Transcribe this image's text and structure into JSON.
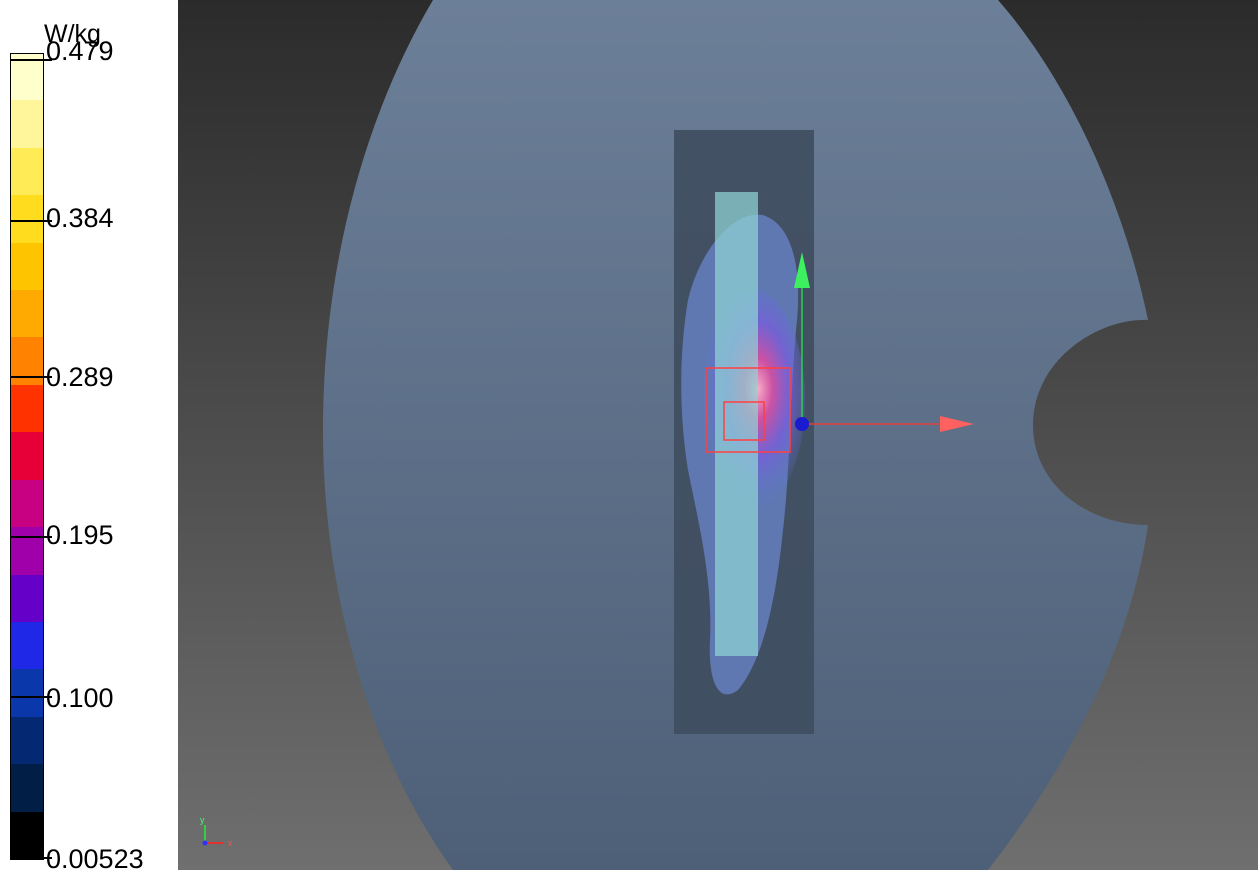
{
  "legend": {
    "unit": "W/kg",
    "tick_labels": [
      "0.479",
      "0.384",
      "0.289",
      "0.195",
      "0.100",
      "0.00523"
    ],
    "colors": [
      "#FFFFCC",
      "#FFF59A",
      "#FFEB55",
      "#FFDC1E",
      "#FFC400",
      "#FFAA00",
      "#FF8200",
      "#FF3200",
      "#E60037",
      "#C80082",
      "#A000AA",
      "#6400C8",
      "#1E28E6",
      "#0A37AA",
      "#052873",
      "#001E46",
      "#000000"
    ]
  },
  "scene": {
    "background_top": "#2b2b2b",
    "background_bottom": "#6f6f6f",
    "phantom_color": "#7f98b8",
    "device_color": "#8fd4d4",
    "axis_x_color": "#ff5050",
    "axis_y_color": "#40ff60",
    "origin_color": "#1a1aff",
    "triad_labels": {
      "y": "y",
      "x": "x"
    }
  }
}
